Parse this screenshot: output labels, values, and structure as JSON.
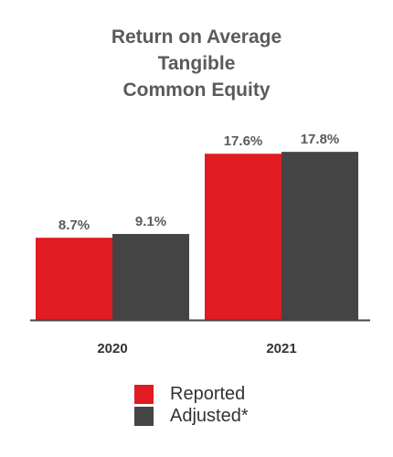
{
  "title_lines": [
    "Return on Average",
    "Tangible",
    "Common Equity"
  ],
  "colors": {
    "reported": "#e01b22",
    "adjusted": "#444444",
    "text": "#5a5a5a",
    "axis": "#444444"
  },
  "chart_data": {
    "type": "bar",
    "title": "Return on Average Tangible Common Equity",
    "categories": [
      "2020",
      "2021"
    ],
    "series": [
      {
        "name": "Reported",
        "values": [
          8.7,
          17.6
        ],
        "labels": [
          "8.7%",
          "17.6%"
        ]
      },
      {
        "name": "Adjusted*",
        "values": [
          9.1,
          17.8
        ],
        "labels": [
          "9.1%",
          "17.8%"
        ]
      }
    ],
    "xlabel": "",
    "ylabel": "",
    "ylim": [
      0,
      20
    ],
    "grid": false,
    "legend_position": "bottom"
  },
  "legend": [
    {
      "label": "Reported",
      "color_key": "reported"
    },
    {
      "label": "Adjusted*",
      "color_key": "adjusted"
    }
  ]
}
